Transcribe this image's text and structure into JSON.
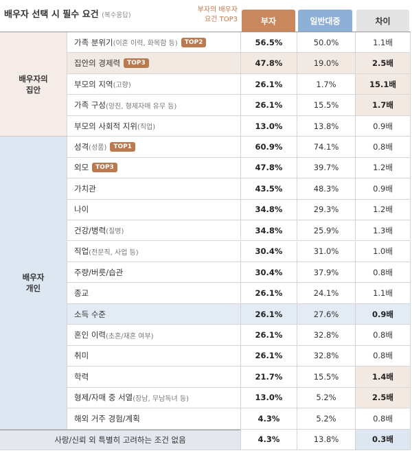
{
  "header": {
    "title": "배우자 선택 시 필수 요건",
    "note": "(복수응답)",
    "legend": "부자의 배우자\n요건 TOP3",
    "columns": [
      "부자",
      "일반대중",
      "차이"
    ]
  },
  "groups": [
    {
      "label": "배우자의\n집안",
      "color": "#f5ece8",
      "rows": [
        {
          "label": "가족 분위기",
          "sub": "(이혼 이력, 화목함 등)",
          "badge": "TOP2",
          "rich": "56.5%",
          "public": "50.0%",
          "diff": "1.1배"
        },
        {
          "label": "집안의 경제력",
          "badge": "TOP3",
          "rich": "47.8%",
          "public": "19.0%",
          "diff": "2.5배",
          "row_highlight": "#f3e9e3",
          "diff_highlight": "#f3e9e3"
        },
        {
          "label": "부모의 지역",
          "sub": "(고향)",
          "rich": "26.1%",
          "public": "1.7%",
          "diff": "15.1배",
          "diff_highlight": "#f3e9e3"
        },
        {
          "label": "가족 구성",
          "sub": "(양친, 형제자매 유무 등)",
          "rich": "26.1%",
          "public": "15.5%",
          "diff": "1.7배",
          "diff_highlight": "#f3e9e3"
        },
        {
          "label": "부모의 사회적 지위",
          "sub": "(직업)",
          "rich": "13.0%",
          "public": "13.8%",
          "diff": "0.9배"
        }
      ]
    },
    {
      "label": "배우자\n개인",
      "color": "#dde7f2",
      "rows": [
        {
          "label": "성격",
          "sub": "(성품)",
          "badge": "TOP1",
          "rich": "60.9%",
          "public": "74.1%",
          "diff": "0.8배"
        },
        {
          "label": "외모",
          "badge": "TOP3",
          "rich": "47.8%",
          "public": "39.7%",
          "diff": "1.2배"
        },
        {
          "label": "가치관",
          "rich": "43.5%",
          "public": "48.3%",
          "diff": "0.9배"
        },
        {
          "label": "나이",
          "rich": "34.8%",
          "public": "29.3%",
          "diff": "1.2배"
        },
        {
          "label": "건강/병력",
          "sub": "(질병)",
          "rich": "34.8%",
          "public": "25.9%",
          "diff": "1.3배"
        },
        {
          "label": "직업",
          "sub": "(전문직, 사업 등)",
          "rich": "30.4%",
          "public": "31.0%",
          "diff": "1.0배"
        },
        {
          "label": "주량/버릇/습관",
          "rich": "30.4%",
          "public": "37.9%",
          "diff": "0.8배"
        },
        {
          "label": "종교",
          "rich": "26.1%",
          "public": "24.1%",
          "diff": "1.1배"
        },
        {
          "label": "소득 수준",
          "rich": "26.1%",
          "public": "27.6%",
          "diff": "0.9배",
          "row_highlight": "#e3ebf5",
          "diff_highlight": "#e3ebf5"
        },
        {
          "label": "혼인 이력",
          "sub": "(초혼/재혼 여부)",
          "rich": "26.1%",
          "public": "32.8%",
          "diff": "0.8배"
        },
        {
          "label": "취미",
          "rich": "26.1%",
          "public": "32.8%",
          "diff": "0.8배"
        },
        {
          "label": "학력",
          "rich": "21.7%",
          "public": "15.5%",
          "diff": "1.4배",
          "diff_highlight": "#f3e9e3"
        },
        {
          "label": "형제/자매 중 서열",
          "sub": "(장남, 무남독녀 등)",
          "rich": "13.0%",
          "public": "5.2%",
          "diff": "2.5배",
          "diff_highlight": "#f3e9e3"
        },
        {
          "label": "해외 거주 경험/계획",
          "rich": "4.3%",
          "public": "5.2%",
          "diff": "0.8배"
        }
      ]
    }
  ],
  "footer_row": {
    "label": "사랑/신뢰 외 특별히 고려하는 조건 없음",
    "color": "#e4e8ee",
    "rich": "4.3%",
    "public": "13.8%",
    "diff": "0.3배",
    "diff_highlight": "#dde7f2"
  }
}
